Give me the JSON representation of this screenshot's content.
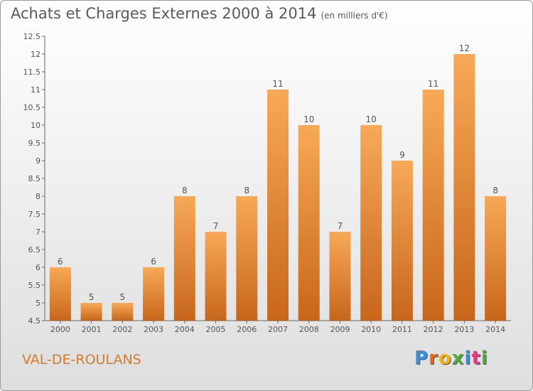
{
  "title": "Achats et Charges Externes 2000 à 2014",
  "subtitle": "(en milliers d'€)",
  "place": "VAL-DE-ROULANS",
  "logo": {
    "letters": [
      "P",
      "r",
      "o",
      "x",
      "i",
      "t",
      "i"
    ],
    "colors": [
      "#3a8fd8",
      "#e8641e",
      "#f2b21a",
      "#4cae3f",
      "#3a8fd8",
      "#e83a8a",
      "#4cae3f"
    ]
  },
  "colors": {
    "bar_top": "#f7a957",
    "bar_bottom": "#c8661b",
    "axis": "#666666"
  },
  "chart_data": {
    "type": "bar",
    "categories": [
      "2000",
      "2001",
      "2002",
      "2003",
      "2004",
      "2005",
      "2006",
      "2007",
      "2008",
      "2009",
      "2010",
      "2011",
      "2012",
      "2013",
      "2014"
    ],
    "values": [
      6,
      5,
      5,
      6,
      8,
      7,
      8,
      11,
      10,
      7,
      10,
      9,
      11,
      12,
      8
    ],
    "ylim": [
      4.5,
      12.5
    ],
    "yticks": [
      "4.5",
      "5",
      "5.5",
      "6",
      "6.5",
      "7",
      "7.5",
      "8",
      "8.5",
      "9",
      "9.5",
      "10",
      "10.5",
      "11",
      "11.5",
      "12",
      "12.5"
    ],
    "legend": "none",
    "grid": false
  }
}
